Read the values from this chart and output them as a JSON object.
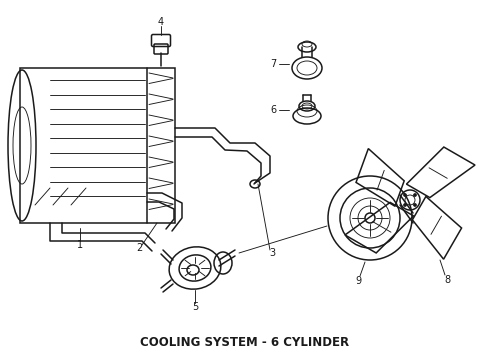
{
  "title": "COOLING SYSTEM - 6 CYLINDER",
  "title_fontsize": 8.5,
  "bg_color": "#ffffff",
  "line_color": "#1a1a1a",
  "lw": 1.1,
  "lw_thin": 0.65,
  "lw_thick": 1.5
}
